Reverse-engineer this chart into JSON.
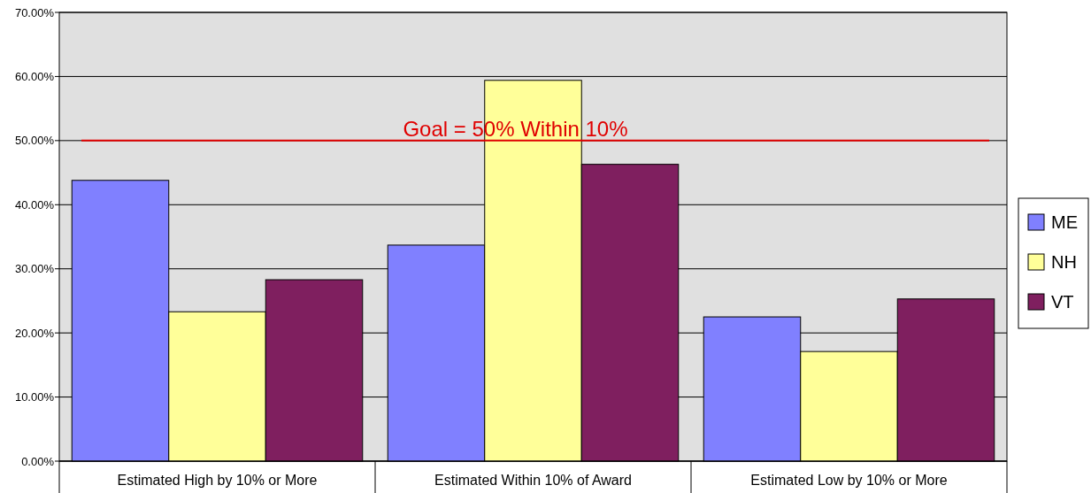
{
  "chart_data": {
    "type": "bar",
    "categories": [
      "Estimated High by 10% or More",
      "Estimated Within 10% of Award",
      "Estimated Low by 10% or More"
    ],
    "series": [
      {
        "name": "ME",
        "color": "#8080ff",
        "values": [
          43.8,
          33.7,
          22.5
        ]
      },
      {
        "name": "NH",
        "color": "#ffff99",
        "values": [
          23.3,
          59.4,
          17.1
        ]
      },
      {
        "name": "VT",
        "color": "#7f1f5f",
        "values": [
          28.3,
          46.3,
          25.3
        ]
      }
    ],
    "ylim": [
      0,
      70
    ],
    "yticks": [
      {
        "value": 0,
        "label": "0.00%"
      },
      {
        "value": 10,
        "label": "10.00%"
      },
      {
        "value": 20,
        "label": "20.00%"
      },
      {
        "value": 30,
        "label": "30.00%"
      },
      {
        "value": 40,
        "label": "40.00%"
      },
      {
        "value": 50,
        "label": "50.00%"
      },
      {
        "value": 60,
        "label": "60.00%"
      },
      {
        "value": 70,
        "label": "70.00%"
      }
    ],
    "grid": "y",
    "legend": "right",
    "ref_lines": [
      {
        "axis": "y",
        "value": 50,
        "label": "Goal = 50% Within 10%",
        "color": "#e00000"
      }
    ]
  }
}
